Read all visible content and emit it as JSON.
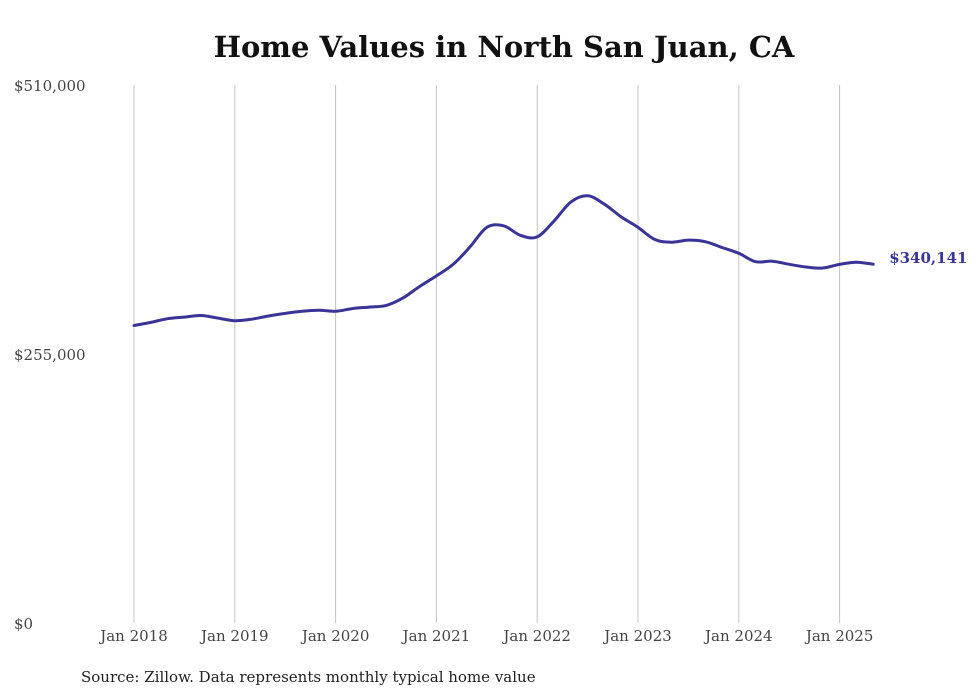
{
  "chart_data": {
    "type": "line",
    "title": "Home Values in North San Juan, CA",
    "xlabel": "",
    "ylabel": "",
    "ylim": [
      0,
      510000
    ],
    "y_ticks": [
      "$0",
      "$255,000",
      "$510,000"
    ],
    "y_tick_values": [
      0,
      255000,
      510000
    ],
    "x_ticks": [
      "Jan 2018",
      "Jan 2019",
      "Jan 2020",
      "Jan 2021",
      "Jan 2022",
      "Jan 2023",
      "Jan 2024",
      "Jan 2025"
    ],
    "x_tick_values": [
      2018,
      2019,
      2020,
      2021,
      2022,
      2023,
      2024,
      2025
    ],
    "xlim": [
      2018,
      2025.5
    ],
    "grid": "vertical",
    "line_color": "#3a3496",
    "end_label": "$340,141",
    "series": [
      {
        "x": [
          2018.0,
          2018.1667,
          2018.3333,
          2018.5,
          2018.6667,
          2018.8333,
          2019.0,
          2019.1667,
          2019.3333,
          2019.5,
          2019.6667,
          2019.8333,
          2020.0,
          2020.1667,
          2020.3333,
          2020.5,
          2020.6667,
          2020.8333,
          2021.0,
          2021.1667,
          2021.3333,
          2021.5,
          2021.6667,
          2021.8333,
          2022.0,
          2022.1667,
          2022.3333,
          2022.5,
          2022.6667,
          2022.8333,
          2023.0,
          2023.1667,
          2023.3333,
          2023.5,
          2023.6667,
          2023.8333,
          2024.0,
          2024.1667,
          2024.3333,
          2024.5,
          2024.6667,
          2024.8333,
          2025.0,
          2025.1667,
          2025.3333
        ],
        "y": [
          282000,
          285000,
          288500,
          290000,
          291500,
          289000,
          286500,
          288000,
          291000,
          293500,
          295500,
          296500,
          295500,
          298000,
          299500,
          301000,
          308000,
          319000,
          329000,
          340000,
          356500,
          375000,
          376500,
          367500,
          366000,
          381000,
          399000,
          405000,
          397000,
          385000,
          375000,
          363500,
          361000,
          363000,
          361500,
          356000,
          350500,
          342500,
          343000,
          340000,
          337500,
          336500,
          340000,
          342000,
          340141
        ]
      }
    ]
  },
  "source_note": "Source: Zillow. Data represents monthly typical home value"
}
